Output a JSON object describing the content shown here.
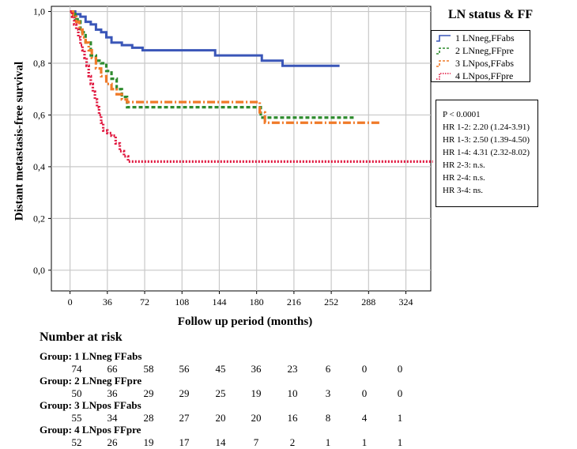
{
  "chart_data": {
    "type": "line",
    "title": "",
    "xlabel": "Follow up period (months)",
    "ylabel": "Distant metastasis-free survival",
    "xlim": [
      -18,
      348
    ],
    "ylim": [
      -0.08,
      1.02
    ],
    "xticks": [
      "0",
      "36",
      "72",
      "108",
      "144",
      "180",
      "216",
      "252",
      "288",
      "324"
    ],
    "xtick_values": [
      0,
      36,
      72,
      108,
      144,
      180,
      216,
      252,
      288,
      324
    ],
    "yticks": [
      "0,0",
      "0,2",
      "0,4",
      "0,6",
      "0,8",
      "1,0"
    ],
    "ytick_values": [
      0,
      0.2,
      0.4,
      0.6,
      0.8,
      1.0
    ],
    "legend_title": "LN status & FF",
    "series": [
      {
        "name": "1 LNneg,FFabs",
        "color": "#3a56b8",
        "dash": "none",
        "x": [
          0,
          5,
          10,
          15,
          20,
          25,
          30,
          35,
          40,
          50,
          60,
          70,
          100,
          140,
          160,
          185,
          205,
          240,
          260
        ],
        "y": [
          1.0,
          0.99,
          0.98,
          0.96,
          0.95,
          0.93,
          0.92,
          0.9,
          0.88,
          0.87,
          0.86,
          0.85,
          0.85,
          0.83,
          0.83,
          0.81,
          0.79,
          0.79,
          0.79
        ]
      },
      {
        "name": "2 LNneg,FFpre",
        "color": "#2e8b2e",
        "dash": "5,3",
        "x": [
          0,
          5,
          10,
          15,
          20,
          25,
          30,
          35,
          40,
          45,
          50,
          55,
          80,
          130,
          170,
          180,
          184,
          220,
          260,
          275
        ],
        "y": [
          1.0,
          0.97,
          0.92,
          0.88,
          0.83,
          0.81,
          0.8,
          0.77,
          0.74,
          0.7,
          0.67,
          0.63,
          0.63,
          0.63,
          0.63,
          0.63,
          0.59,
          0.59,
          0.59,
          0.59
        ]
      },
      {
        "name": "3 LNpos,FFabs",
        "color": "#f07a28",
        "dash": "10,3,2,3",
        "x": [
          0,
          3,
          6,
          9,
          12,
          15,
          18,
          21,
          25,
          30,
          35,
          40,
          45,
          50,
          55,
          80,
          130,
          150,
          178,
          183,
          188,
          230,
          280,
          300
        ],
        "y": [
          1.0,
          0.98,
          0.96,
          0.93,
          0.9,
          0.88,
          0.85,
          0.82,
          0.78,
          0.75,
          0.72,
          0.7,
          0.68,
          0.66,
          0.65,
          0.65,
          0.65,
          0.65,
          0.65,
          0.61,
          0.57,
          0.57,
          0.57,
          0.57
        ]
      },
      {
        "name": "4 LNpos,FFpre",
        "color": "#e0143c",
        "dash": "2,2",
        "x": [
          0,
          2,
          4,
          6,
          8,
          10,
          12,
          14,
          16,
          18,
          20,
          22,
          24,
          26,
          28,
          30,
          32,
          36,
          40,
          44,
          48,
          52,
          56,
          60,
          100,
          200,
          300,
          350
        ],
        "y": [
          1.0,
          0.98,
          0.95,
          0.93,
          0.9,
          0.87,
          0.85,
          0.82,
          0.79,
          0.75,
          0.72,
          0.69,
          0.66,
          0.63,
          0.6,
          0.57,
          0.54,
          0.53,
          0.52,
          0.49,
          0.46,
          0.44,
          0.42,
          0.42,
          0.42,
          0.42,
          0.42,
          0.42
        ]
      }
    ]
  },
  "stats": {
    "lines": [
      "P < 0.0001",
      "HR 1-2: 2.20 (1.24-3.91)",
      "HR 1-3: 2.50 (1.39-4.50)",
      "HR 1-4: 4.31 (2.32-8.02)",
      "HR 2-3: n.s.",
      "HR 2-4: n.s.",
      "HR 3-4: ns."
    ]
  },
  "risk": {
    "title": "Number at risk",
    "groups": [
      {
        "label": "Group: 1 LNneg FFabs",
        "values": [
          "74",
          "66",
          "58",
          "56",
          "45",
          "36",
          "23",
          "6",
          "0",
          "0"
        ]
      },
      {
        "label": "Group: 2 LNneg FFpre",
        "values": [
          "50",
          "36",
          "29",
          "29",
          "25",
          "19",
          "10",
          "3",
          "0",
          "0"
        ]
      },
      {
        "label": "Group: 3 LNpos FFabs",
        "values": [
          "55",
          "34",
          "28",
          "27",
          "20",
          "20",
          "16",
          "8",
          "4",
          "1"
        ]
      },
      {
        "label": "Group: 4 LNpos FFpre",
        "values": [
          "52",
          "26",
          "19",
          "17",
          "14",
          "7",
          "2",
          "1",
          "1",
          "1"
        ]
      }
    ]
  }
}
